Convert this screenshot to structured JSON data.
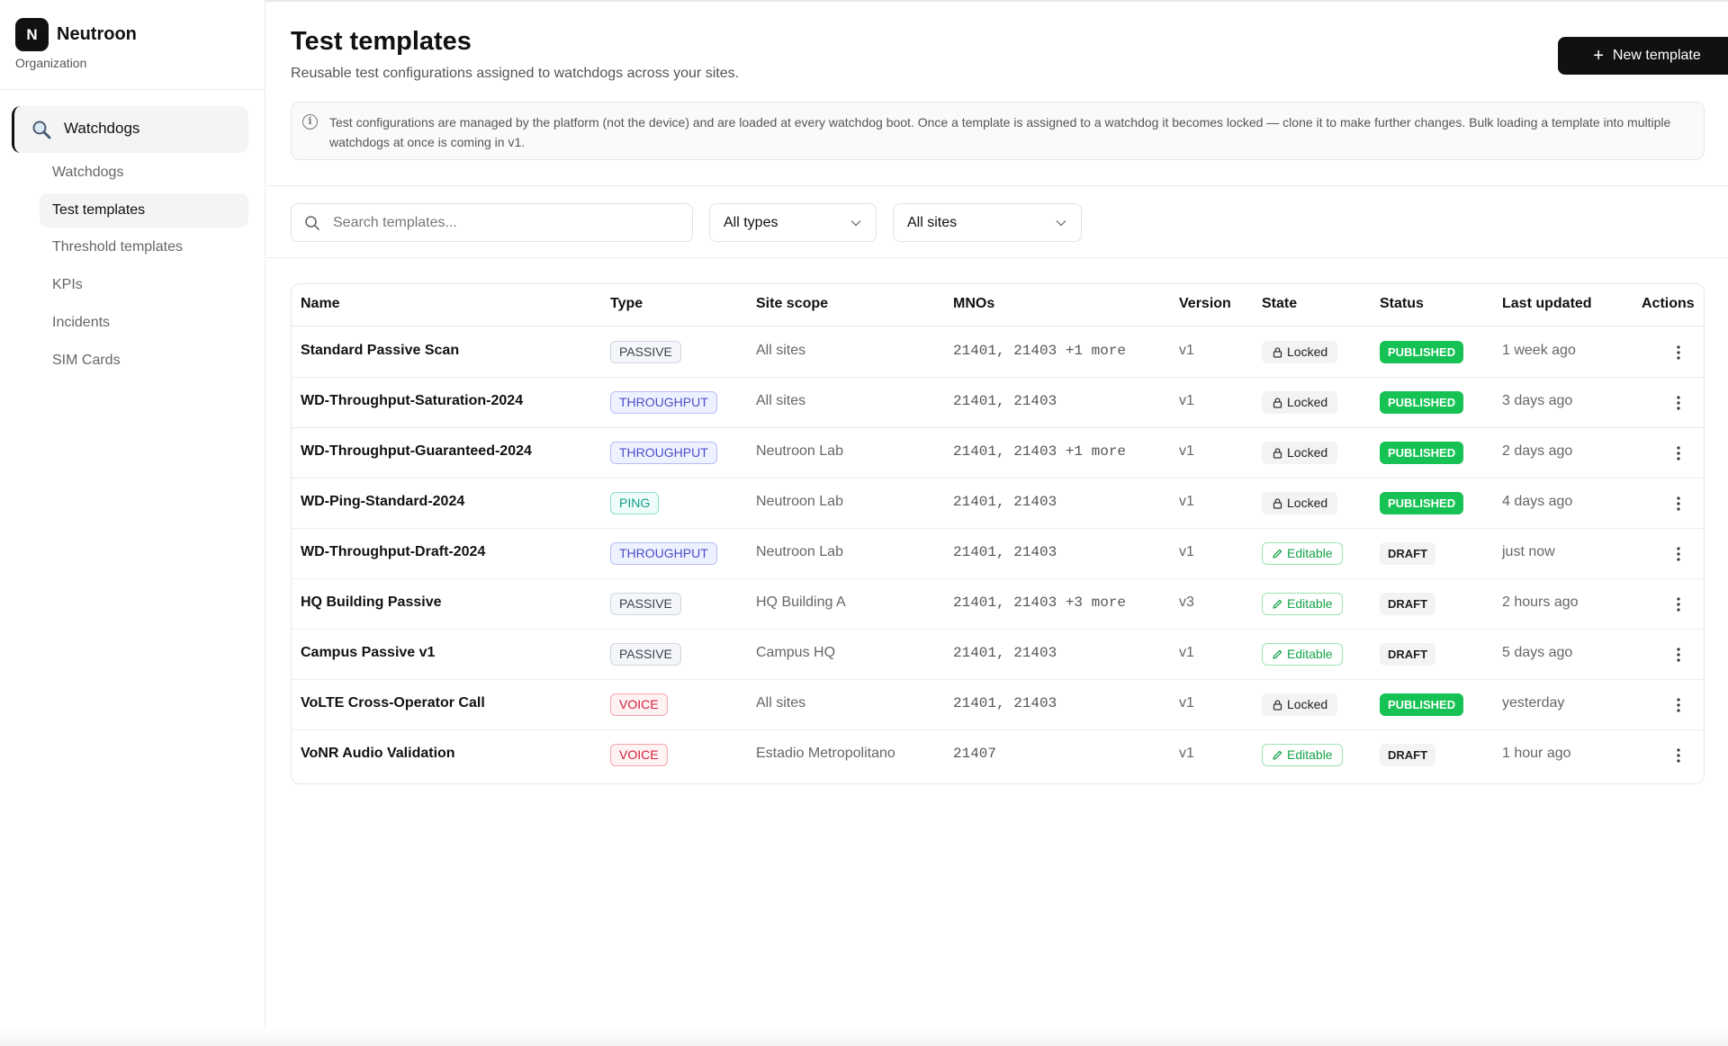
{
  "org": {
    "logo_letter": "N",
    "name": "Neutroon",
    "subtitle": "Organization"
  },
  "sidebar": {
    "group": {
      "label": "Watchdogs",
      "icon": "magnifier-icon"
    },
    "items": [
      {
        "label": "Watchdogs",
        "active": false
      },
      {
        "label": "Test templates",
        "active": true
      },
      {
        "label": "Threshold templates",
        "active": false
      },
      {
        "label": "KPIs",
        "active": false
      },
      {
        "label": "Incidents",
        "active": false
      },
      {
        "label": "SIM Cards",
        "active": false
      }
    ]
  },
  "header": {
    "title": "Test templates",
    "subtitle": "Reusable test configurations assigned to watchdogs across your sites.",
    "new_button_label": "New template"
  },
  "info": {
    "text": "Test configurations are managed by the platform (not the device) and are loaded at every watchdog boot. Once a template is assigned to a watchdog it becomes locked — clone it to make further changes. Bulk loading a template into multiple watchdogs at once is coming in v1."
  },
  "filters": {
    "search_placeholder": "Search templates...",
    "search_value": "",
    "type_select": "All types",
    "site_select": "All sites"
  },
  "table": {
    "columns": {
      "name": "Name",
      "type": "Type",
      "scope": "Site scope",
      "mnos": "MNOs",
      "version": "Version",
      "state": "State",
      "status": "Status",
      "updated": "Last updated",
      "actions": "Actions"
    },
    "rows": [
      {
        "name": "Standard Passive Scan",
        "type": "PASSIVE",
        "scope": "All sites",
        "mnos": "21401, 21403 +1 more",
        "version": "v1",
        "state": "Locked",
        "status": "PUBLISHED",
        "updated": "1 week ago"
      },
      {
        "name": "WD-Throughput-Saturation-2024",
        "type": "THROUGHPUT",
        "scope": "All sites",
        "mnos": "21401, 21403",
        "version": "v1",
        "state": "Locked",
        "status": "PUBLISHED",
        "updated": "3 days ago"
      },
      {
        "name": "WD-Throughput-Guaranteed-2024",
        "type": "THROUGHPUT",
        "scope": "Neutroon Lab",
        "mnos": "21401, 21403 +1 more",
        "version": "v1",
        "state": "Locked",
        "status": "PUBLISHED",
        "updated": "2 days ago"
      },
      {
        "name": "WD-Ping-Standard-2024",
        "type": "PING",
        "scope": "Neutroon Lab",
        "mnos": "21401, 21403",
        "version": "v1",
        "state": "Locked",
        "status": "PUBLISHED",
        "updated": "4 days ago"
      },
      {
        "name": "WD-Throughput-Draft-2024",
        "type": "THROUGHPUT",
        "scope": "Neutroon Lab",
        "mnos": "21401, 21403",
        "version": "v1",
        "state": "Editable",
        "status": "DRAFT",
        "updated": "just now"
      },
      {
        "name": "HQ Building Passive",
        "type": "PASSIVE",
        "scope": "HQ Building A",
        "mnos": "21401, 21403 +3 more",
        "version": "v3",
        "state": "Editable",
        "status": "DRAFT",
        "updated": "2 hours ago"
      },
      {
        "name": "Campus Passive v1",
        "type": "PASSIVE",
        "scope": "Campus HQ",
        "mnos": "21401, 21403",
        "version": "v1",
        "state": "Editable",
        "status": "DRAFT",
        "updated": "5 days ago"
      },
      {
        "name": "VoLTE Cross-Operator Call",
        "type": "VOICE",
        "scope": "All sites",
        "mnos": "21401, 21403",
        "version": "v1",
        "state": "Locked",
        "status": "PUBLISHED",
        "updated": "yesterday"
      },
      {
        "name": "VoNR Audio Validation",
        "type": "VOICE",
        "scope": "Estadio Metropolitano",
        "mnos": "21407",
        "version": "v1",
        "state": "Editable",
        "status": "DRAFT",
        "updated": "1 hour ago"
      }
    ]
  },
  "colors": {
    "PASSIVE": {
      "bg": "#f4f6f9",
      "border": "#cfd6e0",
      "text": "#3a4250"
    },
    "THROUGHPUT": {
      "bg": "#eef1ff",
      "border": "#b6bef5",
      "text": "#4a4fc7"
    },
    "PING": {
      "bg": "#effdfa",
      "border": "#8fe0d0",
      "text": "#0f9c88"
    },
    "VOICE": {
      "bg": "#fff2f3",
      "border": "#f5a3ad",
      "text": "#d3213a"
    },
    "published": "#16c254"
  }
}
